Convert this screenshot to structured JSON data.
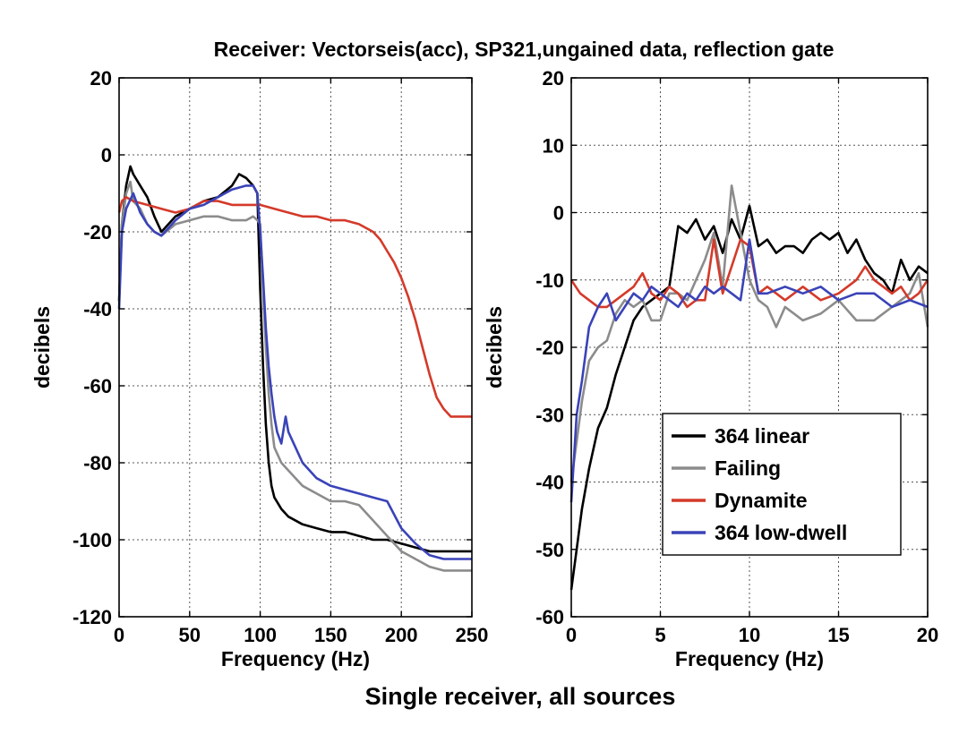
{
  "figure": {
    "title": "Receiver: Vectorseis(acc), SP321,ungained data, reflection gate",
    "caption": "Single receiver, all sources"
  },
  "colors": {
    "s364_linear": "#000000",
    "failing": "#8c8c8c",
    "dynamite": "#d43a2a",
    "s364_low_dwell": "#3a43b8",
    "grid": "#555555",
    "axis": "#000000"
  },
  "chart_data": [
    {
      "type": "line",
      "panel": "left",
      "xlabel": "Frequency (Hz)",
      "ylabel": "decibels",
      "xlim": [
        0,
        250
      ],
      "ylim": [
        -120,
        20
      ],
      "xticks": [
        0,
        50,
        100,
        150,
        200,
        250
      ],
      "yticks": [
        20,
        0,
        -20,
        -40,
        -60,
        -80,
        -100,
        -120
      ],
      "grid": true,
      "series": [
        {
          "name": "364 linear",
          "color_key": "s364_linear",
          "x": [
            0,
            2,
            5,
            8,
            10,
            15,
            20,
            25,
            30,
            40,
            50,
            60,
            70,
            80,
            85,
            90,
            95,
            98,
            100,
            102,
            104,
            106,
            108,
            110,
            115,
            120,
            130,
            140,
            150,
            160,
            170,
            180,
            190,
            200,
            210,
            220,
            230,
            240,
            250
          ],
          "y": [
            -38,
            -18,
            -8,
            -3,
            -5,
            -8,
            -11,
            -16,
            -20,
            -16,
            -14,
            -12,
            -11,
            -8,
            -5,
            -6,
            -8,
            -10,
            -35,
            -55,
            -70,
            -80,
            -86,
            -89,
            -92,
            -94,
            -96,
            -97,
            -98,
            -98,
            -99,
            -100,
            -100,
            -101,
            -102,
            -103,
            -103,
            -103,
            -103
          ]
        },
        {
          "name": "Failing",
          "color_key": "failing",
          "x": [
            0,
            2,
            5,
            8,
            10,
            15,
            20,
            25,
            30,
            40,
            50,
            60,
            70,
            80,
            90,
            95,
            98,
            100,
            102,
            104,
            106,
            108,
            110,
            115,
            120,
            130,
            140,
            150,
            160,
            170,
            180,
            190,
            200,
            210,
            220,
            230,
            240,
            250
          ],
          "y": [
            -38,
            -18,
            -10,
            -7,
            -12,
            -14,
            -18,
            -20,
            -21,
            -18,
            -17,
            -16,
            -16,
            -17,
            -17,
            -16,
            -17,
            -18,
            -35,
            -50,
            -62,
            -70,
            -76,
            -80,
            -82,
            -86,
            -88,
            -90,
            -90,
            -91,
            -95,
            -99,
            -103,
            -105,
            -107,
            -108,
            -108,
            -108
          ]
        },
        {
          "name": "Dynamite",
          "color_key": "dynamite",
          "x": [
            0,
            2,
            5,
            10,
            20,
            30,
            40,
            50,
            60,
            70,
            80,
            90,
            100,
            110,
            120,
            130,
            140,
            150,
            160,
            170,
            180,
            185,
            190,
            195,
            200,
            205,
            210,
            215,
            220,
            225,
            230,
            235,
            240,
            245,
            250
          ],
          "y": [
            -15,
            -12,
            -11,
            -12,
            -13,
            -14,
            -15,
            -14,
            -12,
            -12,
            -13,
            -13,
            -13,
            -14,
            -15,
            -16,
            -16,
            -17,
            -17,
            -18,
            -20,
            -22,
            -25,
            -28,
            -32,
            -37,
            -43,
            -50,
            -57,
            -63,
            -66,
            -68,
            -68,
            -68,
            -68
          ]
        },
        {
          "name": "364 low-dwell",
          "color_key": "s364_low_dwell",
          "x": [
            0,
            2,
            5,
            10,
            15,
            20,
            25,
            30,
            40,
            50,
            60,
            70,
            80,
            90,
            95,
            98,
            100,
            102,
            104,
            106,
            108,
            110,
            112,
            115,
            118,
            120,
            125,
            130,
            140,
            150,
            160,
            170,
            180,
            190,
            200,
            210,
            220,
            230,
            240,
            250
          ],
          "y": [
            -40,
            -20,
            -14,
            -10,
            -15,
            -18,
            -20,
            -21,
            -17,
            -14,
            -13,
            -11,
            -9,
            -8,
            -8,
            -10,
            -20,
            -32,
            -45,
            -55,
            -62,
            -68,
            -72,
            -75,
            -68,
            -72,
            -76,
            -80,
            -84,
            -86,
            -87,
            -88,
            -89,
            -90,
            -97,
            -101,
            -104,
            -105,
            -105,
            -105
          ]
        }
      ]
    },
    {
      "type": "line",
      "panel": "right",
      "xlabel": "Frequency (Hz)",
      "ylabel": "decibels",
      "xlim": [
        0,
        20
      ],
      "ylim": [
        -60,
        20
      ],
      "xticks": [
        0,
        5,
        10,
        15,
        20
      ],
      "yticks": [
        20,
        10,
        0,
        -10,
        -20,
        -30,
        -40,
        -50,
        -60
      ],
      "grid": true,
      "legend_position": "lower-right",
      "series": [
        {
          "name": "364 linear",
          "color_key": "s364_linear",
          "x": [
            0,
            0.3,
            0.6,
            1,
            1.5,
            2,
            2.5,
            3,
            3.5,
            4,
            5,
            5.5,
            6,
            6.5,
            7,
            7.5,
            8,
            8.5,
            9,
            9.5,
            10,
            10.5,
            11,
            11.5,
            12,
            12.5,
            13,
            13.5,
            14,
            14.5,
            15,
            15.5,
            16,
            16.5,
            17,
            17.5,
            18,
            18.5,
            19,
            19.5,
            20
          ],
          "y": [
            -56,
            -50,
            -44,
            -38,
            -32,
            -29,
            -24,
            -20,
            -16,
            -14,
            -12,
            -11,
            -2,
            -3,
            -1,
            -4,
            -2,
            -6,
            -1,
            -4,
            1,
            -5,
            -4,
            -6,
            -5,
            -5,
            -6,
            -4,
            -3,
            -4,
            -3,
            -6,
            -4,
            -7,
            -9,
            -10,
            -12,
            -7,
            -10,
            -8,
            -9
          ]
        },
        {
          "name": "Failing",
          "color_key": "failing",
          "x": [
            0,
            0.3,
            0.6,
            1,
            1.5,
            2,
            2.5,
            3,
            3.5,
            4,
            4.5,
            5,
            5.5,
            6,
            6.5,
            7,
            7.5,
            8,
            8.5,
            9,
            9.5,
            10,
            10.5,
            11,
            11.5,
            12,
            13,
            14,
            15,
            16,
            17,
            18,
            19,
            19.5,
            20
          ],
          "y": [
            -40,
            -34,
            -28,
            -22,
            -20,
            -19,
            -15,
            -13,
            -14,
            -13,
            -16,
            -16,
            -12,
            -12,
            -13,
            -10,
            -7,
            -3,
            -11,
            4,
            -3,
            -10,
            -13,
            -14,
            -17,
            -14,
            -16,
            -15,
            -13,
            -16,
            -16,
            -14,
            -12,
            -9,
            -17
          ]
        },
        {
          "name": "Dynamite",
          "color_key": "dynamite",
          "x": [
            0,
            0.5,
            1,
            1.5,
            2,
            2.5,
            3,
            3.5,
            4,
            4.5,
            5,
            5.5,
            6,
            6.5,
            7,
            7.5,
            8,
            8.5,
            9,
            9.5,
            10,
            10.5,
            11,
            11.5,
            12,
            13,
            14,
            15,
            16,
            16.5,
            17,
            17.5,
            18,
            18.5,
            19,
            19.5,
            20
          ],
          "y": [
            -10,
            -12,
            -13,
            -14,
            -14,
            -13,
            -12,
            -11,
            -9,
            -12,
            -13,
            -11,
            -12,
            -14,
            -13,
            -13,
            -4,
            -12,
            -8,
            -4,
            -5,
            -12,
            -11,
            -12,
            -13,
            -11,
            -13,
            -12,
            -10,
            -8,
            -10,
            -11,
            -12,
            -11,
            -13,
            -12,
            -10
          ]
        },
        {
          "name": "364 low-dwell",
          "color_key": "s364_low_dwell",
          "x": [
            0,
            0.3,
            0.6,
            1,
            1.5,
            2,
            2.5,
            3,
            3.5,
            4,
            4.5,
            5,
            5.5,
            6,
            6.5,
            7,
            7.5,
            8,
            8.5,
            9,
            9.5,
            10,
            10.5,
            11,
            12,
            13,
            14,
            15,
            16,
            17,
            18,
            19,
            20
          ],
          "y": [
            -43,
            -30,
            -25,
            -17,
            -14,
            -12,
            -16,
            -14,
            -12,
            -13,
            -11,
            -12,
            -13,
            -14,
            -12,
            -13,
            -11,
            -12,
            -11,
            -12,
            -13,
            -4,
            -12,
            -12,
            -11,
            -12,
            -11,
            -13,
            -12,
            -12,
            -14,
            -13,
            -14
          ]
        }
      ]
    }
  ]
}
